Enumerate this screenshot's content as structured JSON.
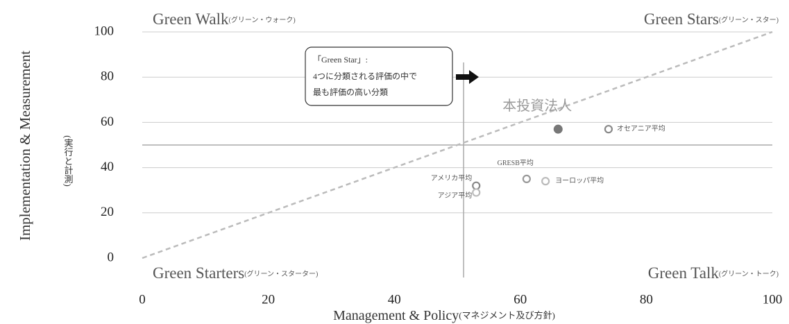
{
  "chart_data": {
    "type": "scatter",
    "x_label": "Management & Policy",
    "x_label_sub": "(マネジメント及び方針)",
    "y_label": "Implementation & Measurement",
    "y_label_sub": "(実行と計測)",
    "xlim": [
      0,
      100
    ],
    "ylim": [
      0,
      100
    ],
    "xticks": [
      0,
      20,
      40,
      60,
      80,
      100
    ],
    "yticks": [
      0,
      20,
      40,
      60,
      80,
      100
    ],
    "grid": true,
    "reference_lines": {
      "x": 51,
      "y": 50
    },
    "quadrants": {
      "top_left": {
        "title": "Green Walk",
        "sub": "(グリーン・ウォーク)"
      },
      "top_right": {
        "title": "Green Stars",
        "sub": "(グリーン・スター)"
      },
      "bottom_left": {
        "title": "Green Starters",
        "sub": "(グリーン・スターター)"
      },
      "bottom_right": {
        "title": "Green Talk",
        "sub": "(グリーン・トーク)"
      }
    },
    "callout": [
      "「Green Star」:",
      "4つに分類される評価の中で",
      "最も評価の高い分類"
    ],
    "series": [
      {
        "name": "本投資法人",
        "color": "#777777",
        "filled": true,
        "x": [
          66
        ],
        "values": [
          57
        ]
      },
      {
        "name": "オセアニア平均",
        "color": "#888888",
        "filled": false,
        "x": [
          74
        ],
        "values": [
          57
        ]
      },
      {
        "name": "GRESB平均",
        "color": "#999999",
        "filled": false,
        "x": [
          61
        ],
        "values": [
          35
        ]
      },
      {
        "name": "ヨーロッパ平均",
        "color": "#bbbbbb",
        "filled": false,
        "x": [
          64
        ],
        "values": [
          34
        ]
      },
      {
        "name": "アメリカ平均",
        "color": "#888888",
        "filled": false,
        "x": [
          53
        ],
        "values": [
          32
        ]
      },
      {
        "name": "アジア平均",
        "color": "#bbbbbb",
        "filled": false,
        "x": [
          53
        ],
        "values": [
          29
        ]
      }
    ]
  }
}
